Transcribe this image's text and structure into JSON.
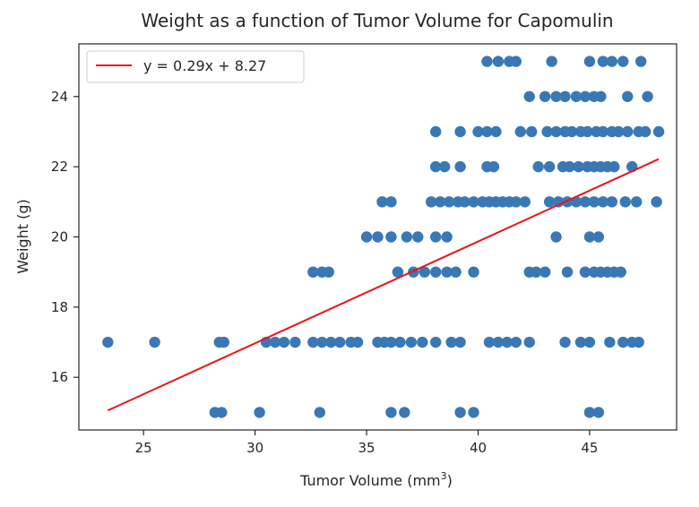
{
  "chart_data": {
    "type": "scatter",
    "title": "Weight as a function of Tumor Volume for Capomulin",
    "xlabel": "Tumor Volume (mm",
    "xlabel_superscript": "3",
    "xlabel_suffix": ")",
    "ylabel": "Weight (g)",
    "xlim": [
      22.1,
      48.9
    ],
    "ylim": [
      14.5,
      25.5
    ],
    "xticks": [
      25,
      30,
      35,
      40,
      45
    ],
    "yticks": [
      16,
      18,
      20,
      22,
      24
    ],
    "grid": false,
    "legend": {
      "position": "top-left",
      "entries": [
        "y = 0.29x + 8.27"
      ]
    },
    "colors": {
      "points": "#3a78b5",
      "regression": "#e8161b",
      "frame": "#262626"
    },
    "series": [
      {
        "type": "scatter",
        "points": [
          [
            40.4,
            25
          ],
          [
            40.9,
            25
          ],
          [
            41.4,
            25
          ],
          [
            41.7,
            25
          ],
          [
            43.3,
            25
          ],
          [
            45.0,
            25
          ],
          [
            45.6,
            25
          ],
          [
            46.0,
            25
          ],
          [
            46.5,
            25
          ],
          [
            47.3,
            25
          ],
          [
            42.3,
            24
          ],
          [
            43.0,
            24
          ],
          [
            43.5,
            24
          ],
          [
            43.9,
            24
          ],
          [
            44.4,
            24
          ],
          [
            44.8,
            24
          ],
          [
            45.2,
            24
          ],
          [
            45.5,
            24
          ],
          [
            46.7,
            24
          ],
          [
            47.6,
            24
          ],
          [
            38.1,
            23
          ],
          [
            39.2,
            23
          ],
          [
            40.0,
            23
          ],
          [
            40.4,
            23
          ],
          [
            40.8,
            23
          ],
          [
            41.9,
            23
          ],
          [
            42.4,
            23
          ],
          [
            43.1,
            23
          ],
          [
            43.5,
            23
          ],
          [
            43.9,
            23
          ],
          [
            44.2,
            23
          ],
          [
            44.6,
            23
          ],
          [
            44.9,
            23
          ],
          [
            45.3,
            23
          ],
          [
            45.6,
            23
          ],
          [
            46.0,
            23
          ],
          [
            46.3,
            23
          ],
          [
            46.7,
            23
          ],
          [
            47.2,
            23
          ],
          [
            47.5,
            23
          ],
          [
            48.1,
            23
          ],
          [
            38.1,
            22
          ],
          [
            38.5,
            22
          ],
          [
            39.2,
            22
          ],
          [
            40.4,
            22
          ],
          [
            40.7,
            22
          ],
          [
            42.7,
            22
          ],
          [
            43.2,
            22
          ],
          [
            43.8,
            22
          ],
          [
            44.1,
            22
          ],
          [
            44.5,
            22
          ],
          [
            44.9,
            22
          ],
          [
            45.2,
            22
          ],
          [
            45.5,
            22
          ],
          [
            45.8,
            22
          ],
          [
            46.1,
            22
          ],
          [
            46.9,
            22
          ],
          [
            35.7,
            21
          ],
          [
            36.1,
            21
          ],
          [
            37.9,
            21
          ],
          [
            38.3,
            21
          ],
          [
            38.7,
            21
          ],
          [
            39.1,
            21
          ],
          [
            39.4,
            21
          ],
          [
            39.8,
            21
          ],
          [
            40.2,
            21
          ],
          [
            40.5,
            21
          ],
          [
            40.8,
            21
          ],
          [
            41.1,
            21
          ],
          [
            41.4,
            21
          ],
          [
            41.7,
            21
          ],
          [
            42.1,
            21
          ],
          [
            43.2,
            21
          ],
          [
            43.6,
            21
          ],
          [
            44.0,
            21
          ],
          [
            44.4,
            21
          ],
          [
            44.8,
            21
          ],
          [
            45.2,
            21
          ],
          [
            45.6,
            21
          ],
          [
            46.0,
            21
          ],
          [
            46.6,
            21
          ],
          [
            47.1,
            21
          ],
          [
            48.0,
            21
          ],
          [
            35.0,
            20
          ],
          [
            35.5,
            20
          ],
          [
            36.1,
            20
          ],
          [
            36.8,
            20
          ],
          [
            37.3,
            20
          ],
          [
            38.1,
            20
          ],
          [
            38.6,
            20
          ],
          [
            43.5,
            20
          ],
          [
            45.0,
            20
          ],
          [
            45.4,
            20
          ],
          [
            32.6,
            19
          ],
          [
            33.0,
            19
          ],
          [
            33.3,
            19
          ],
          [
            36.4,
            19
          ],
          [
            37.1,
            19
          ],
          [
            37.6,
            19
          ],
          [
            38.1,
            19
          ],
          [
            38.6,
            19
          ],
          [
            39.0,
            19
          ],
          [
            39.8,
            19
          ],
          [
            42.3,
            19
          ],
          [
            42.6,
            19
          ],
          [
            43.0,
            19
          ],
          [
            44.0,
            19
          ],
          [
            44.8,
            19
          ],
          [
            45.2,
            19
          ],
          [
            45.5,
            19
          ],
          [
            45.8,
            19
          ],
          [
            46.1,
            19
          ],
          [
            46.4,
            19
          ],
          [
            23.4,
            17
          ],
          [
            25.5,
            17
          ],
          [
            28.4,
            17
          ],
          [
            28.6,
            17
          ],
          [
            30.5,
            17
          ],
          [
            30.9,
            17
          ],
          [
            31.3,
            17
          ],
          [
            31.8,
            17
          ],
          [
            32.6,
            17
          ],
          [
            33.0,
            17
          ],
          [
            33.4,
            17
          ],
          [
            33.8,
            17
          ],
          [
            34.3,
            17
          ],
          [
            34.6,
            17
          ],
          [
            35.5,
            17
          ],
          [
            35.8,
            17
          ],
          [
            36.1,
            17
          ],
          [
            36.5,
            17
          ],
          [
            37.0,
            17
          ],
          [
            37.5,
            17
          ],
          [
            38.1,
            17
          ],
          [
            38.8,
            17
          ],
          [
            39.2,
            17
          ],
          [
            40.5,
            17
          ],
          [
            40.9,
            17
          ],
          [
            41.3,
            17
          ],
          [
            41.7,
            17
          ],
          [
            42.3,
            17
          ],
          [
            43.9,
            17
          ],
          [
            44.6,
            17
          ],
          [
            45.0,
            17
          ],
          [
            45.9,
            17
          ],
          [
            46.5,
            17
          ],
          [
            46.9,
            17
          ],
          [
            47.2,
            17
          ],
          [
            28.2,
            15
          ],
          [
            28.5,
            15
          ],
          [
            30.2,
            15
          ],
          [
            32.9,
            15
          ],
          [
            36.1,
            15
          ],
          [
            36.7,
            15
          ],
          [
            39.2,
            15
          ],
          [
            39.8,
            15
          ],
          [
            45.0,
            15
          ],
          [
            45.4,
            15
          ]
        ]
      },
      {
        "type": "line",
        "name": "y = 0.29x + 8.27",
        "slope": 0.29,
        "intercept": 8.27,
        "x_range": [
          23.4,
          48.1
        ]
      }
    ]
  }
}
